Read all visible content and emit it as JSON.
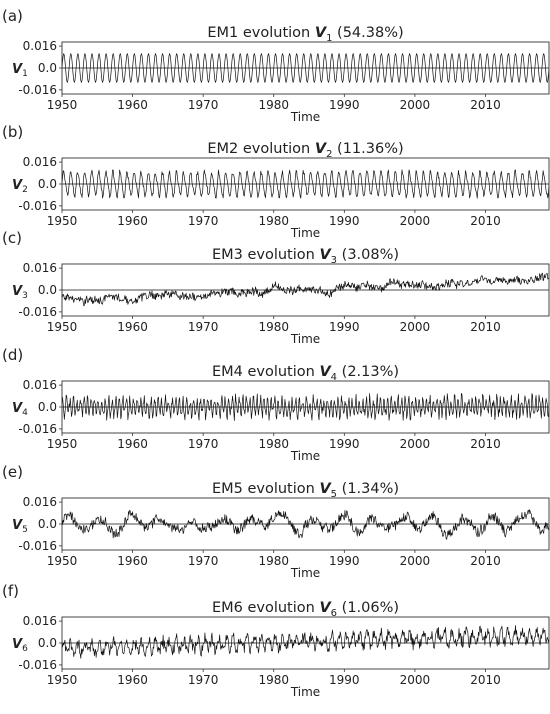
{
  "chart_data": [
    {
      "type": "line",
      "panel_label": "(a)",
      "title_prefix": "EM1 evolution ",
      "title_var": "V",
      "title_sub": "1",
      "title_suffix": " (54.38%)",
      "ylabel_var": "V",
      "ylabel_sub": "1",
      "xlabel": "Time",
      "xlim": [
        1950,
        2019
      ],
      "ylim": [
        -0.019,
        0.019
      ],
      "xticks": [
        1950,
        1960,
        1970,
        1980,
        1990,
        2000,
        2010
      ],
      "yticks": [
        0.016,
        0.0,
        -0.016
      ],
      "ytick_labels": [
        "0.016",
        "0.0",
        "-0.016"
      ],
      "zero_line": true,
      "series": [
        {
          "kind": "annual-cycle",
          "amplitude": 0.0105,
          "period_years": 1.0,
          "x_start": 1950,
          "x_end": 2019
        }
      ]
    },
    {
      "type": "line",
      "panel_label": "(b)",
      "title_prefix": "EM2 evolution ",
      "title_var": "V",
      "title_sub": "2",
      "title_suffix": " (11.36%)",
      "ylabel_var": "V",
      "ylabel_sub": "2",
      "xlabel": "Time",
      "xlim": [
        1950,
        2019
      ],
      "ylim": [
        -0.019,
        0.019
      ],
      "xticks": [
        1950,
        1960,
        1970,
        1980,
        1990,
        2000,
        2010
      ],
      "yticks": [
        0.016,
        0.0,
        -0.016
      ],
      "ytick_labels": [
        "0.016",
        "0.0",
        "-0.016"
      ],
      "zero_line": true,
      "series": [
        {
          "kind": "annual-cycle-noisy",
          "amplitude": 0.0085,
          "noise": 0.0018,
          "period_years": 1.0,
          "x_start": 1950,
          "x_end": 2019
        }
      ]
    },
    {
      "type": "line",
      "panel_label": "(c)",
      "title_prefix": "EM3 evolution ",
      "title_var": "V",
      "title_sub": "3",
      "title_suffix": " (3.08%)",
      "ylabel_var": "V",
      "ylabel_sub": "3",
      "xlabel": "Time",
      "xlim": [
        1950,
        2019
      ],
      "ylim": [
        -0.019,
        0.019
      ],
      "xticks": [
        1950,
        1960,
        1970,
        1980,
        1990,
        2000,
        2010
      ],
      "yticks": [
        0.016,
        0.0,
        -0.016
      ],
      "ytick_labels": [
        "0.016",
        "0.0",
        "-0.016"
      ],
      "zero_line": true,
      "series": [
        {
          "kind": "trend-noise",
          "trend_start": -0.008,
          "trend_end": 0.009,
          "noise": 0.0045,
          "x_start": 1950,
          "x_end": 2019
        }
      ]
    },
    {
      "type": "line",
      "panel_label": "(d)",
      "title_prefix": "EM4 evolution ",
      "title_var": "V",
      "title_sub": "4",
      "title_suffix": " (2.13%)",
      "ylabel_var": "V",
      "ylabel_sub": "4",
      "xlabel": "Time",
      "xlim": [
        1950,
        2019
      ],
      "ylim": [
        -0.019,
        0.019
      ],
      "xticks": [
        1950,
        1960,
        1970,
        1980,
        1990,
        2000,
        2010
      ],
      "yticks": [
        0.016,
        0.0,
        -0.016
      ],
      "ytick_labels": [
        "0.016",
        "0.0",
        "-0.016"
      ],
      "zero_line": true,
      "series": [
        {
          "kind": "semiannual-noisy",
          "amplitude": 0.007,
          "noise": 0.004,
          "x_start": 1950,
          "x_end": 2019
        }
      ]
    },
    {
      "type": "line",
      "panel_label": "(e)",
      "title_prefix": "EM5 evolution ",
      "title_var": "V",
      "title_sub": "5",
      "title_suffix": " (1.34%)",
      "ylabel_var": "V",
      "ylabel_sub": "5",
      "xlabel": "Time",
      "xlim": [
        1950,
        2019
      ],
      "ylim": [
        -0.019,
        0.019
      ],
      "xticks": [
        1950,
        1960,
        1970,
        1980,
        1990,
        2000,
        2010
      ],
      "yticks": [
        0.016,
        0.0,
        -0.016
      ],
      "ytick_labels": [
        "0.016",
        "0.0",
        "-0.016"
      ],
      "zero_line": true,
      "series": [
        {
          "kind": "interannual-noisy",
          "amplitude": 0.007,
          "noise": 0.0035,
          "x_start": 1950,
          "x_end": 2019
        }
      ]
    },
    {
      "type": "line",
      "panel_label": "(f)",
      "title_prefix": "EM6 evolution ",
      "title_var": "V",
      "title_sub": "6",
      "title_suffix": " (1.06%)",
      "ylabel_var": "V",
      "ylabel_sub": "6",
      "xlabel": "Time",
      "xlim": [
        1950,
        2019
      ],
      "ylim": [
        -0.019,
        0.019
      ],
      "xticks": [
        1950,
        1960,
        1970,
        1980,
        1990,
        2000,
        2010
      ],
      "yticks": [
        0.016,
        0.0,
        -0.016
      ],
      "ytick_labels": [
        "0.016",
        "0.0",
        "-0.016"
      ],
      "zero_line": true,
      "series": [
        {
          "kind": "trend-annual-noisy",
          "trend_start": -0.004,
          "trend_end": 0.006,
          "amplitude": 0.004,
          "noise": 0.0045,
          "x_start": 1950,
          "x_end": 2019
        }
      ]
    }
  ]
}
